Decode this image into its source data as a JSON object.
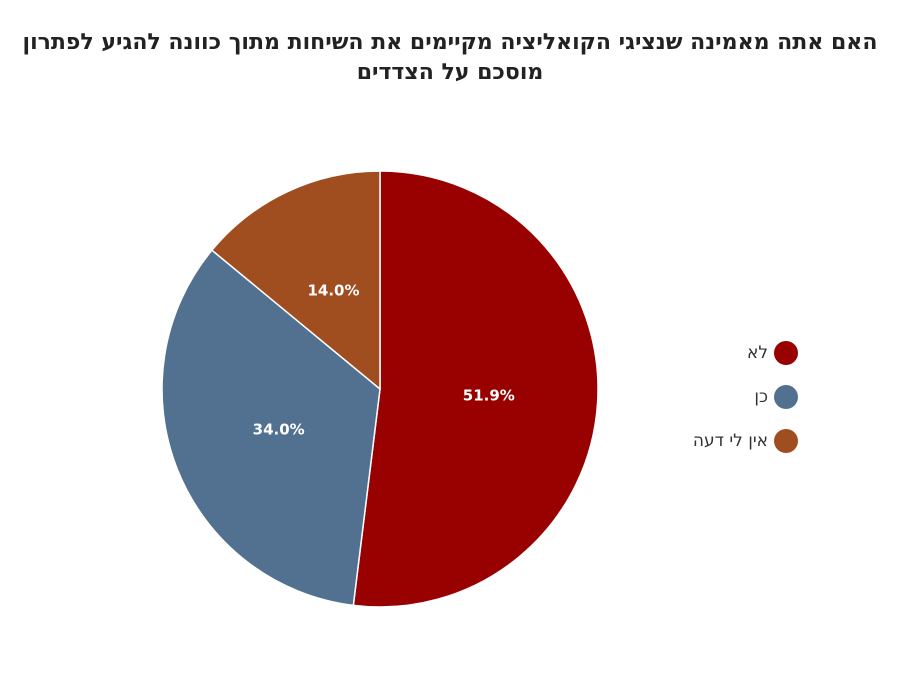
{
  "chart_data": {
    "type": "pie",
    "title": "האם אתה מאמינה שנציגי הקואליציה מקיימים את השיחות מתוך כוונה להגיע לפתרון מוסכם על הצדדים",
    "slices": [
      {
        "label": "לא",
        "value": 51.9,
        "value_label": "51.9%",
        "color": "#990000"
      },
      {
        "label": "כן",
        "value": 34.0,
        "value_label": "34.0%",
        "color": "#52708f"
      },
      {
        "label": "אין לי דעה",
        "value": 14.0,
        "value_label": "14.0%",
        "color": "#a04d20"
      }
    ],
    "start_angle_deg": 0,
    "direction": "clockwise",
    "legend_position": "right",
    "slice_border_color": "#ffffff"
  }
}
